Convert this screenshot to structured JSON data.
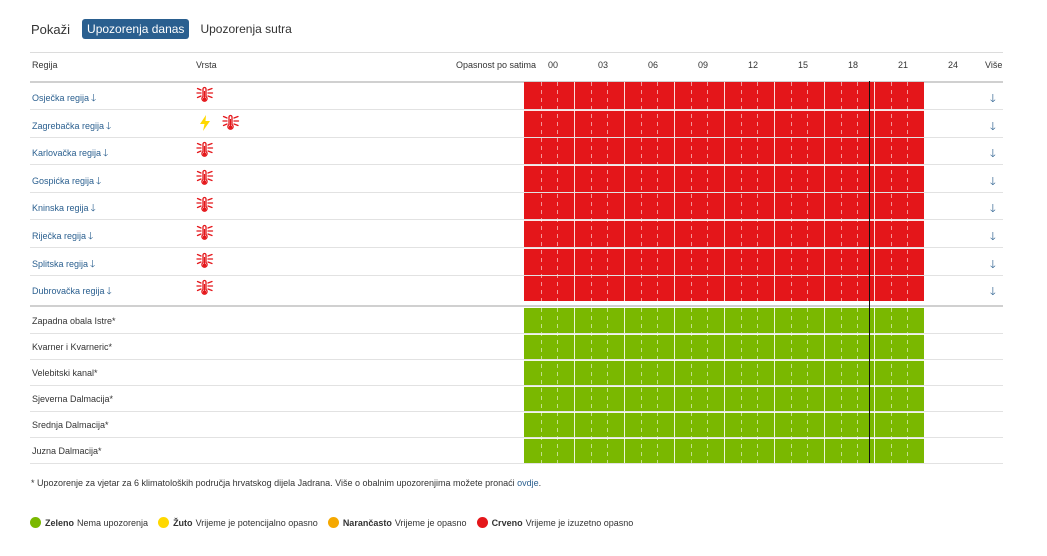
{
  "toolbar": {
    "label": "Pokaži",
    "tab_today": "Upozorenja danas",
    "tab_tomorrow": "Upozorenja sutra"
  },
  "table": {
    "col_region": "Regija",
    "col_type": "Vrsta",
    "col_hours": "Opasnost po satima",
    "col_more": "Više",
    "hours": [
      "00",
      "03",
      "06",
      "09",
      "12",
      "15",
      "18",
      "21",
      "24"
    ]
  },
  "regions": [
    {
      "name": "Osječka regija",
      "icons": [
        "heat-icon"
      ],
      "level": "red"
    },
    {
      "name": "Zagrebačka regija",
      "icons": [
        "lightning-icon",
        "heat-icon"
      ],
      "level": "red"
    },
    {
      "name": "Karlovačka regija",
      "icons": [
        "heat-icon"
      ],
      "level": "red"
    },
    {
      "name": "Gospićka regija",
      "icons": [
        "heat-icon"
      ],
      "level": "red"
    },
    {
      "name": "Kninska regija",
      "icons": [
        "heat-icon"
      ],
      "level": "red"
    },
    {
      "name": "Riječka regija",
      "icons": [
        "heat-icon"
      ],
      "level": "red"
    },
    {
      "name": "Splitska regija",
      "icons": [
        "heat-icon"
      ],
      "level": "red"
    },
    {
      "name": "Dubrovačka regija",
      "icons": [
        "heat-icon"
      ],
      "level": "red"
    }
  ],
  "coastal": [
    {
      "name": "Zapadna obala Istre*",
      "level": "green"
    },
    {
      "name": "Kvarner i Kvarneric*",
      "level": "green"
    },
    {
      "name": "Velebitski kanal*",
      "level": "green"
    },
    {
      "name": "Sjeverna Dalmacija*",
      "level": "green"
    },
    {
      "name": "Srednja Dalmacija*",
      "level": "green"
    },
    {
      "name": "Juzna Dalmacija*",
      "level": "green"
    }
  ],
  "footnote": {
    "text": "* Upozorenje za vjetar za 6 klimatoloških područja hrvatskog dijela Jadrana. Više o obalnim upozorenjima možete pronaći ",
    "link": "ovdje",
    "end": "."
  },
  "legend": [
    {
      "name": "Zeleno",
      "desc": "Nema upozorenja",
      "color": "#7ab800"
    },
    {
      "name": "Žuto",
      "desc": "Vrijeme je potencijalno opasno",
      "color": "#ffd800"
    },
    {
      "name": "Narančasto",
      "desc": "Vrijeme je opasno",
      "color": "#f5a800"
    },
    {
      "name": "Crveno",
      "desc": "Vrijeme je izuzetno opasno",
      "color": "#e4161a"
    }
  ],
  "colors": {
    "red": "#e4161a",
    "green": "#7ab800",
    "accent": "#2a5f8f"
  }
}
